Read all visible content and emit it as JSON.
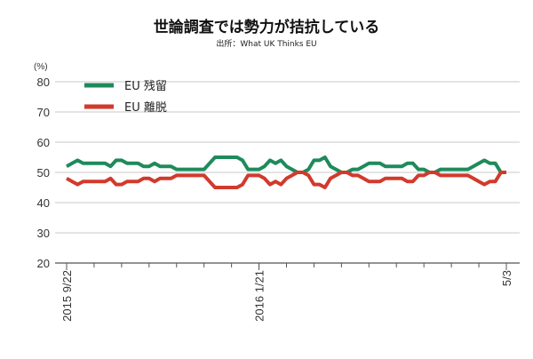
{
  "chart_data": {
    "type": "line",
    "title": "世論調査では勢力が拮抗している",
    "subtitle": "出所：What UK Thinks EU",
    "ylabel": "(%)",
    "ylim": [
      20,
      80
    ],
    "yticks": [
      "20",
      "30",
      "40",
      "50",
      "60",
      "70",
      "80"
    ],
    "xticks": [
      {
        "index": 0,
        "label": "2015 9/22"
      },
      {
        "index": 35,
        "label": "2016 1/21"
      },
      {
        "index": 80,
        "label": "5/3"
      }
    ],
    "grid": true,
    "legend": "top-left",
    "series": [
      {
        "name": "EU 残留",
        "color": "#1f8a5c",
        "values": [
          52,
          53,
          54,
          53,
          53,
          53,
          53,
          53,
          52,
          54,
          54,
          53,
          53,
          53,
          52,
          52,
          53,
          52,
          52,
          52,
          51,
          51,
          51,
          51,
          51,
          51,
          53,
          55,
          55,
          55,
          55,
          55,
          54,
          51,
          51,
          51,
          52,
          54,
          53,
          54,
          52,
          51,
          50,
          50,
          51,
          54,
          54,
          55,
          52,
          51,
          50,
          50,
          51,
          51,
          52,
          53,
          53,
          53,
          52,
          52,
          52,
          52,
          53,
          53,
          51,
          51,
          50,
          50,
          51,
          51,
          51,
          51,
          51,
          51,
          52,
          53,
          54,
          53,
          53,
          50,
          50
        ]
      },
      {
        "name": "EU 離脱",
        "color": "#d23a2c",
        "values": [
          48,
          47,
          46,
          47,
          47,
          47,
          47,
          47,
          48,
          46,
          46,
          47,
          47,
          47,
          48,
          48,
          47,
          48,
          48,
          48,
          49,
          49,
          49,
          49,
          49,
          49,
          47,
          45,
          45,
          45,
          45,
          45,
          46,
          49,
          49,
          49,
          48,
          46,
          47,
          46,
          48,
          49,
          50,
          50,
          49,
          46,
          46,
          45,
          48,
          49,
          50,
          50,
          49,
          49,
          48,
          47,
          47,
          47,
          48,
          48,
          48,
          48,
          47,
          47,
          49,
          49,
          50,
          50,
          49,
          49,
          49,
          49,
          49,
          49,
          48,
          47,
          46,
          47,
          47,
          50,
          50
        ]
      }
    ]
  }
}
